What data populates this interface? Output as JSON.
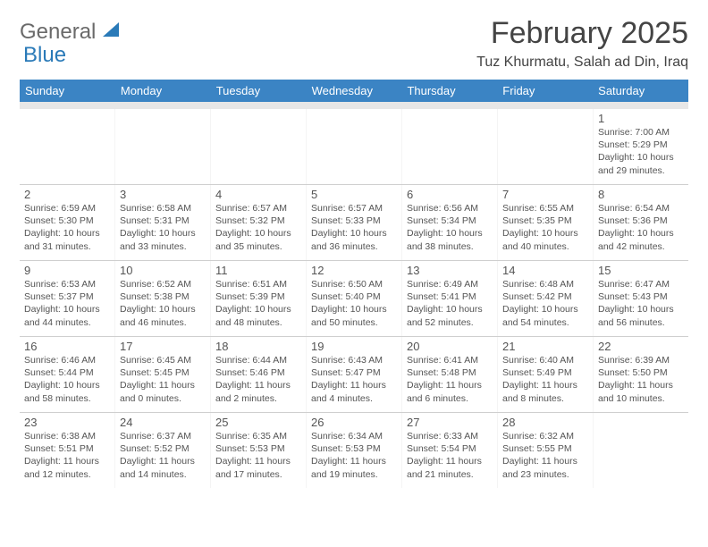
{
  "logo": {
    "text1": "General",
    "text2": "Blue"
  },
  "title": "February 2025",
  "location": "Tuz Khurmatu, Salah ad Din, Iraq",
  "colors": {
    "header_bg": "#3b84c4",
    "header_text": "#ffffff",
    "logo_gray": "#6a6a6a",
    "logo_blue": "#2a7ab8",
    "text": "#555555",
    "border": "#cfcfcf"
  },
  "day_headers": [
    "Sunday",
    "Monday",
    "Tuesday",
    "Wednesday",
    "Thursday",
    "Friday",
    "Saturday"
  ],
  "weeks": [
    [
      {
        "n": "",
        "lines": []
      },
      {
        "n": "",
        "lines": []
      },
      {
        "n": "",
        "lines": []
      },
      {
        "n": "",
        "lines": []
      },
      {
        "n": "",
        "lines": []
      },
      {
        "n": "",
        "lines": []
      },
      {
        "n": "1",
        "lines": [
          "Sunrise: 7:00 AM",
          "Sunset: 5:29 PM",
          "Daylight: 10 hours and 29 minutes."
        ]
      }
    ],
    [
      {
        "n": "2",
        "lines": [
          "Sunrise: 6:59 AM",
          "Sunset: 5:30 PM",
          "Daylight: 10 hours and 31 minutes."
        ]
      },
      {
        "n": "3",
        "lines": [
          "Sunrise: 6:58 AM",
          "Sunset: 5:31 PM",
          "Daylight: 10 hours and 33 minutes."
        ]
      },
      {
        "n": "4",
        "lines": [
          "Sunrise: 6:57 AM",
          "Sunset: 5:32 PM",
          "Daylight: 10 hours and 35 minutes."
        ]
      },
      {
        "n": "5",
        "lines": [
          "Sunrise: 6:57 AM",
          "Sunset: 5:33 PM",
          "Daylight: 10 hours and 36 minutes."
        ]
      },
      {
        "n": "6",
        "lines": [
          "Sunrise: 6:56 AM",
          "Sunset: 5:34 PM",
          "Daylight: 10 hours and 38 minutes."
        ]
      },
      {
        "n": "7",
        "lines": [
          "Sunrise: 6:55 AM",
          "Sunset: 5:35 PM",
          "Daylight: 10 hours and 40 minutes."
        ]
      },
      {
        "n": "8",
        "lines": [
          "Sunrise: 6:54 AM",
          "Sunset: 5:36 PM",
          "Daylight: 10 hours and 42 minutes."
        ]
      }
    ],
    [
      {
        "n": "9",
        "lines": [
          "Sunrise: 6:53 AM",
          "Sunset: 5:37 PM",
          "Daylight: 10 hours and 44 minutes."
        ]
      },
      {
        "n": "10",
        "lines": [
          "Sunrise: 6:52 AM",
          "Sunset: 5:38 PM",
          "Daylight: 10 hours and 46 minutes."
        ]
      },
      {
        "n": "11",
        "lines": [
          "Sunrise: 6:51 AM",
          "Sunset: 5:39 PM",
          "Daylight: 10 hours and 48 minutes."
        ]
      },
      {
        "n": "12",
        "lines": [
          "Sunrise: 6:50 AM",
          "Sunset: 5:40 PM",
          "Daylight: 10 hours and 50 minutes."
        ]
      },
      {
        "n": "13",
        "lines": [
          "Sunrise: 6:49 AM",
          "Sunset: 5:41 PM",
          "Daylight: 10 hours and 52 minutes."
        ]
      },
      {
        "n": "14",
        "lines": [
          "Sunrise: 6:48 AM",
          "Sunset: 5:42 PM",
          "Daylight: 10 hours and 54 minutes."
        ]
      },
      {
        "n": "15",
        "lines": [
          "Sunrise: 6:47 AM",
          "Sunset: 5:43 PM",
          "Daylight: 10 hours and 56 minutes."
        ]
      }
    ],
    [
      {
        "n": "16",
        "lines": [
          "Sunrise: 6:46 AM",
          "Sunset: 5:44 PM",
          "Daylight: 10 hours and 58 minutes."
        ]
      },
      {
        "n": "17",
        "lines": [
          "Sunrise: 6:45 AM",
          "Sunset: 5:45 PM",
          "Daylight: 11 hours and 0 minutes."
        ]
      },
      {
        "n": "18",
        "lines": [
          "Sunrise: 6:44 AM",
          "Sunset: 5:46 PM",
          "Daylight: 11 hours and 2 minutes."
        ]
      },
      {
        "n": "19",
        "lines": [
          "Sunrise: 6:43 AM",
          "Sunset: 5:47 PM",
          "Daylight: 11 hours and 4 minutes."
        ]
      },
      {
        "n": "20",
        "lines": [
          "Sunrise: 6:41 AM",
          "Sunset: 5:48 PM",
          "Daylight: 11 hours and 6 minutes."
        ]
      },
      {
        "n": "21",
        "lines": [
          "Sunrise: 6:40 AM",
          "Sunset: 5:49 PM",
          "Daylight: 11 hours and 8 minutes."
        ]
      },
      {
        "n": "22",
        "lines": [
          "Sunrise: 6:39 AM",
          "Sunset: 5:50 PM",
          "Daylight: 11 hours and 10 minutes."
        ]
      }
    ],
    [
      {
        "n": "23",
        "lines": [
          "Sunrise: 6:38 AM",
          "Sunset: 5:51 PM",
          "Daylight: 11 hours and 12 minutes."
        ]
      },
      {
        "n": "24",
        "lines": [
          "Sunrise: 6:37 AM",
          "Sunset: 5:52 PM",
          "Daylight: 11 hours and 14 minutes."
        ]
      },
      {
        "n": "25",
        "lines": [
          "Sunrise: 6:35 AM",
          "Sunset: 5:53 PM",
          "Daylight: 11 hours and 17 minutes."
        ]
      },
      {
        "n": "26",
        "lines": [
          "Sunrise: 6:34 AM",
          "Sunset: 5:53 PM",
          "Daylight: 11 hours and 19 minutes."
        ]
      },
      {
        "n": "27",
        "lines": [
          "Sunrise: 6:33 AM",
          "Sunset: 5:54 PM",
          "Daylight: 11 hours and 21 minutes."
        ]
      },
      {
        "n": "28",
        "lines": [
          "Sunrise: 6:32 AM",
          "Sunset: 5:55 PM",
          "Daylight: 11 hours and 23 minutes."
        ]
      },
      {
        "n": "",
        "lines": []
      }
    ]
  ]
}
